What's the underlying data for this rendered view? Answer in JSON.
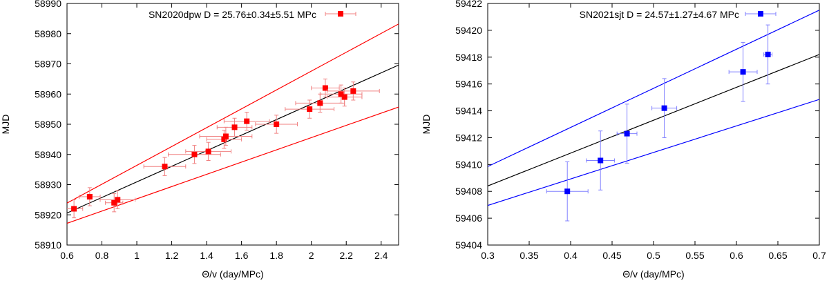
{
  "chart_data": [
    {
      "type": "scatter",
      "panel": "left",
      "title": "",
      "xlabel": "Θ/v (day/MPc)",
      "ylabel": "MJD",
      "xlim": [
        0.6,
        2.5
      ],
      "ylim": [
        58910,
        58990
      ],
      "xticks": [
        0.6,
        0.8,
        1.0,
        1.2,
        1.4,
        1.6,
        1.8,
        2.0,
        2.2,
        2.4
      ],
      "xtick_labels": [
        "0.6",
        "0.8",
        "1",
        "1.2",
        "1.4",
        "1.6",
        "1.8",
        "2",
        "2.2",
        "2.4"
      ],
      "yticks": [
        58910,
        58920,
        58930,
        58940,
        58950,
        58960,
        58970,
        58980,
        58990
      ],
      "ytick_labels": [
        "58910",
        "58920",
        "58930",
        "58940",
        "58950",
        "58960",
        "58970",
        "58980",
        "58990"
      ],
      "grid": false,
      "legend": {
        "position": "top-right",
        "label": "SN2020dpw D = 25.76±0.34±5.51 MPc",
        "color": "#ff0000"
      },
      "series": [
        {
          "name": "SN2020dpw D = 25.76±0.34±5.51 MPc",
          "color": "#ff0000",
          "marker": "square",
          "points": [
            {
              "x": 0.64,
              "y": 58922,
              "xerr": 0.05,
              "yerr": 3
            },
            {
              "x": 0.73,
              "y": 58926,
              "xerr": 0.06,
              "yerr": 3
            },
            {
              "x": 0.87,
              "y": 58924,
              "xerr": 0.05,
              "yerr": 3
            },
            {
              "x": 0.89,
              "y": 58925,
              "xerr": 0.1,
              "yerr": 3
            },
            {
              "x": 1.16,
              "y": 58936,
              "xerr": 0.12,
              "yerr": 3
            },
            {
              "x": 1.33,
              "y": 58940,
              "xerr": 0.15,
              "yerr": 3
            },
            {
              "x": 1.41,
              "y": 58941,
              "xerr": 0.13,
              "yerr": 3
            },
            {
              "x": 1.5,
              "y": 58945,
              "xerr": 0.1,
              "yerr": 3
            },
            {
              "x": 1.51,
              "y": 58946,
              "xerr": 0.15,
              "yerr": 3
            },
            {
              "x": 1.56,
              "y": 58949,
              "xerr": 0.1,
              "yerr": 3
            },
            {
              "x": 1.63,
              "y": 58951,
              "xerr": 0.13,
              "yerr": 3
            },
            {
              "x": 1.8,
              "y": 58950,
              "xerr": 0.12,
              "yerr": 3
            },
            {
              "x": 1.99,
              "y": 58955,
              "xerr": 0.14,
              "yerr": 3
            },
            {
              "x": 2.05,
              "y": 58957,
              "xerr": 0.14,
              "yerr": 3
            },
            {
              "x": 2.08,
              "y": 58962,
              "xerr": 0.08,
              "yerr": 3
            },
            {
              "x": 2.17,
              "y": 58960,
              "xerr": 0.12,
              "yerr": 3
            },
            {
              "x": 2.19,
              "y": 58959,
              "xerr": 0.1,
              "yerr": 3
            },
            {
              "x": 2.24,
              "y": 58961,
              "xerr": 0.15,
              "yerr": 3
            }
          ]
        }
      ],
      "lines": [
        {
          "color": "#ff0000",
          "x": [
            0.6,
            2.5
          ],
          "y": [
            58923.9,
            58983.2
          ]
        },
        {
          "color": "#000000",
          "x": [
            0.6,
            2.5
          ],
          "y": [
            58920.6,
            58969.6
          ]
        },
        {
          "color": "#ff0000",
          "x": [
            0.6,
            2.5
          ],
          "y": [
            58917.2,
            58955.7
          ]
        }
      ]
    },
    {
      "type": "scatter",
      "panel": "right",
      "title": "",
      "xlabel": "Θ/v (day/MPc)",
      "ylabel": "MJD",
      "xlim": [
        0.3,
        0.7
      ],
      "ylim": [
        59404,
        59422
      ],
      "xticks": [
        0.3,
        0.35,
        0.4,
        0.45,
        0.5,
        0.55,
        0.6,
        0.65,
        0.7
      ],
      "xtick_labels": [
        "0.3",
        "0.35",
        "0.4",
        "0.45",
        "0.5",
        "0.55",
        "0.6",
        "0.65",
        "0.7"
      ],
      "yticks": [
        59404,
        59406,
        59408,
        59410,
        59412,
        59414,
        59416,
        59418,
        59420,
        59422
      ],
      "ytick_labels": [
        "59404",
        "59406",
        "59408",
        "59410",
        "59412",
        "59414",
        "59416",
        "59418",
        "59420",
        "59422"
      ],
      "grid": false,
      "legend": {
        "position": "top-right",
        "label": "SN2021sjt D = 24.57±1.27±4.67 MPc",
        "color": "#0000ff"
      },
      "series": [
        {
          "name": "SN2021sjt D = 24.57±1.27±4.67 MPc",
          "color": "#0000ff",
          "marker": "square",
          "points": [
            {
              "x": 0.396,
              "y": 59408.0,
              "xerr": 0.025,
              "yerr": 2.2
            },
            {
              "x": 0.436,
              "y": 59410.3,
              "xerr": 0.017,
              "yerr": 2.2
            },
            {
              "x": 0.468,
              "y": 59412.3,
              "xerr": 0.012,
              "yerr": 2.2
            },
            {
              "x": 0.513,
              "y": 59414.2,
              "xerr": 0.015,
              "yerr": 2.2
            },
            {
              "x": 0.608,
              "y": 59416.9,
              "xerr": 0.017,
              "yerr": 2.2
            },
            {
              "x": 0.638,
              "y": 59418.2,
              "xerr": 0.005,
              "yerr": 2.2
            }
          ]
        }
      ],
      "lines": [
        {
          "color": "#0000ff",
          "x": [
            0.3,
            0.7
          ],
          "y": [
            59409.85,
            59421.5
          ]
        },
        {
          "color": "#000000",
          "x": [
            0.3,
            0.7
          ],
          "y": [
            59408.4,
            59418.2
          ]
        },
        {
          "color": "#0000ff",
          "x": [
            0.3,
            0.7
          ],
          "y": [
            59406.95,
            59414.85
          ]
        }
      ]
    }
  ]
}
